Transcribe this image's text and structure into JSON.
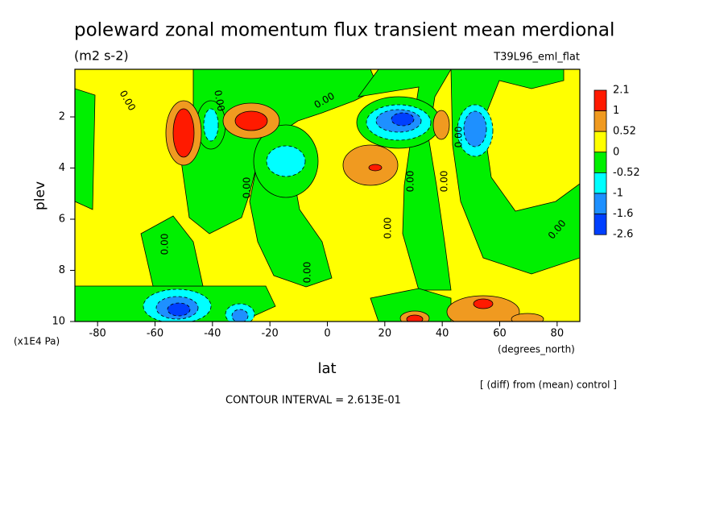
{
  "chart_data": {
    "type": "contour",
    "title": "poleward zonal momentum flux transient mean merdional",
    "subtitle": "(m2 s-2)",
    "annotation": "T39L96_eml_flat",
    "x_label": "lat",
    "x_units": "(degrees_north)",
    "y_label": "plev",
    "y_units": "(x1E4 Pa)",
    "footer": "[ (diff) from (mean) control ]",
    "contour_interval": "CONTOUR INTERVAL = 2.613E-01",
    "xlim": [
      -87.9,
      87.9
    ],
    "xticks": [
      -80,
      -60,
      -40,
      -20,
      0,
      20,
      40,
      60,
      80
    ],
    "ylim": [
      10,
      0.14
    ],
    "yticks": [
      2,
      4,
      6,
      8,
      10
    ],
    "levels": [
      2.1,
      1,
      0.52,
      0,
      -0.52,
      -1,
      -1.6,
      -2.6
    ],
    "colors": [
      "#ff1a00",
      "#f09a20",
      "#ffff00",
      "#00f000",
      "#00ffff",
      "#1e90ff",
      "#0040ff"
    ],
    "contour_labels": [
      "0.00",
      "0.00",
      "0.00",
      "0.00",
      "0.00",
      "0.00",
      "0.00",
      "0.00",
      "0.00",
      "0.00",
      "0.00"
    ]
  }
}
